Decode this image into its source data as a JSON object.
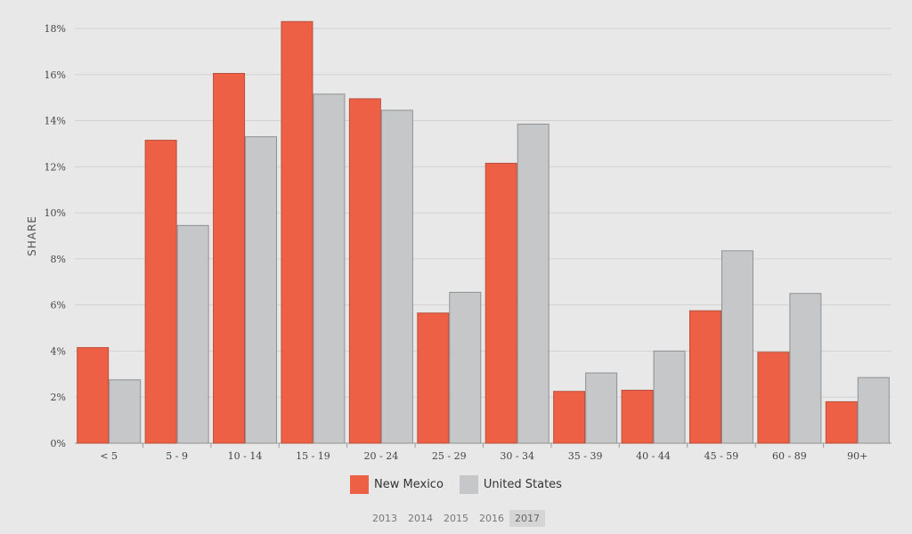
{
  "chart_data": {
    "type": "bar",
    "categories": [
      "< 5",
      "5 - 9",
      "10 - 14",
      "15 - 19",
      "20 - 24",
      "25 - 29",
      "30 - 34",
      "35 - 39",
      "40 - 44",
      "45 - 59",
      "60 - 89",
      "90+"
    ],
    "series": [
      {
        "name": "New Mexico",
        "color": "#ee6045",
        "values": [
          4.15,
          13.15,
          16.05,
          18.3,
          14.95,
          5.65,
          12.15,
          2.25,
          2.3,
          5.75,
          3.95,
          1.8
        ]
      },
      {
        "name": "United States",
        "color": "#c6c7c9",
        "values": [
          2.75,
          9.45,
          13.3,
          15.15,
          14.45,
          6.55,
          13.85,
          3.05,
          4.0,
          8.35,
          6.5,
          2.85
        ]
      }
    ],
    "title": "",
    "xlabel": "",
    "ylabel": "SHARE",
    "ylim": [
      0,
      18
    ],
    "yticks": [
      "0%",
      "2%",
      "4%",
      "6%",
      "8%",
      "10%",
      "12%",
      "14%",
      "16%",
      "18%"
    ],
    "grid": true,
    "legend_position": "bottom-center"
  },
  "year_selector": {
    "years": [
      "2013",
      "2014",
      "2015",
      "2016",
      "2017"
    ],
    "selected": "2017"
  }
}
